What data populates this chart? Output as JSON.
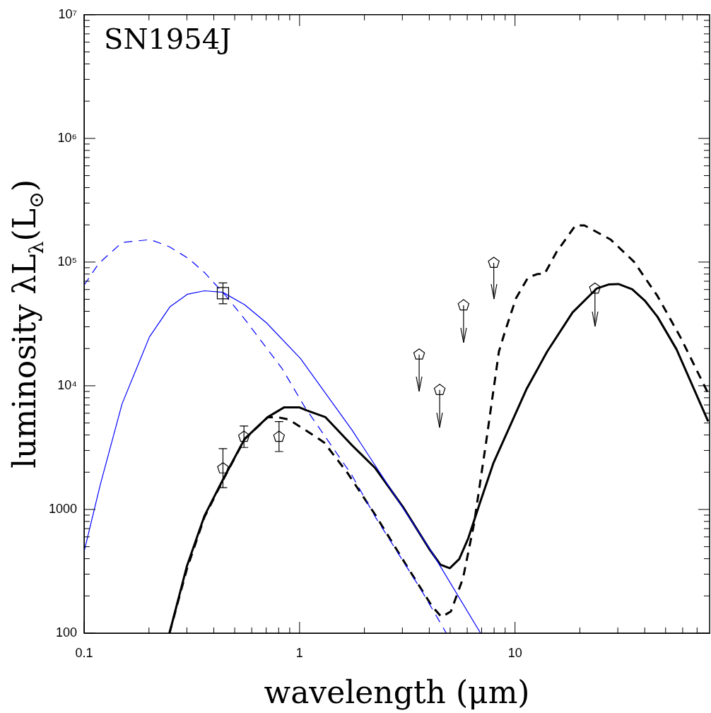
{
  "chart_data": {
    "type": "line",
    "xlabel": "wavelength (μm)",
    "ylabel": "luminosity λL$_{λ}$(L$_{⊙}$)",
    "log": "xy",
    "xlim": [
      0.1,
      80
    ],
    "ylim": [
      100,
      10000000
    ],
    "xticks": [
      0.1,
      {
        "value": 0.2,
        "label": null
      },
      {
        "value": 0.3,
        "label": null
      },
      {
        "value": 0.4,
        "label": null
      },
      {
        "value": 0.5,
        "label": null
      },
      {
        "value": 0.6,
        "label": null
      },
      {
        "value": 0.7,
        "label": null
      },
      {
        "value": 0.8,
        "label": null
      },
      {
        "value": 0.9,
        "label": null
      },
      1,
      {
        "value": 2,
        "label": null
      },
      {
        "value": 3,
        "label": null
      },
      {
        "value": 4,
        "label": null
      },
      {
        "value": 5,
        "label": null
      },
      {
        "value": 6,
        "label": null
      },
      {
        "value": 7,
        "label": null
      },
      {
        "value": 8,
        "label": null
      },
      {
        "value": 9,
        "label": null
      },
      10,
      {
        "value": 20,
        "label": null
      },
      {
        "value": 30,
        "label": null
      },
      {
        "value": 40,
        "label": null
      },
      {
        "value": 50,
        "label": null
      },
      {
        "value": 60,
        "label": null
      },
      {
        "value": 70,
        "label": null
      }
    ],
    "yticks": [
      100,
      {
        "value": 200,
        "label": null
      },
      {
        "value": 300,
        "label": null
      },
      {
        "value": 400,
        "label": null
      },
      {
        "value": 500,
        "label": null
      },
      {
        "value": 600,
        "label": null
      },
      {
        "value": 700,
        "label": null
      },
      {
        "value": 800,
        "label": null
      },
      {
        "value": 900,
        "label": null
      },
      1000,
      {
        "value": 2000,
        "label": null
      },
      {
        "value": 3000,
        "label": null
      },
      {
        "value": 4000,
        "label": null
      },
      {
        "value": 5000,
        "label": null
      },
      {
        "value": 6000,
        "label": null
      },
      {
        "value": 7000,
        "label": null
      },
      {
        "value": 8000,
        "label": null
      },
      {
        "value": 9000,
        "label": null
      },
      {
        "value": 10000,
        "label": "10⁴"
      },
      {
        "value": 20000,
        "label": null
      },
      {
        "value": 30000,
        "label": null
      },
      {
        "value": 40000,
        "label": null
      },
      {
        "value": 50000,
        "label": null
      },
      {
        "value": 60000,
        "label": null
      },
      {
        "value": 70000,
        "label": null
      },
      {
        "value": 80000,
        "label": null
      },
      {
        "value": 90000,
        "label": null
      },
      {
        "value": 100000,
        "label": "10⁵"
      },
      {
        "value": 200000,
        "label": null
      },
      {
        "value": 300000,
        "label": null
      },
      {
        "value": 400000,
        "label": null
      },
      {
        "value": 500000,
        "label": null
      },
      {
        "value": 600000,
        "label": null
      },
      {
        "value": 700000,
        "label": null
      },
      {
        "value": 800000,
        "label": null
      },
      {
        "value": 900000,
        "label": null
      },
      {
        "value": 1000000,
        "label": "10⁶"
      },
      {
        "value": 2000000,
        "label": null
      },
      {
        "value": 3000000,
        "label": null
      },
      {
        "value": 4000000,
        "label": null
      },
      {
        "value": 5000000,
        "label": null
      },
      {
        "value": 6000000,
        "label": null
      },
      {
        "value": 7000000,
        "label": null
      },
      {
        "value": 8000000,
        "label": null
      },
      {
        "value": 9000000,
        "label": null
      },
      {
        "value": 10000000,
        "label": "10⁷"
      }
    ],
    "grid": false,
    "legend": false,
    "annotations": [
      "SN1954J"
    ],
    "series": [
      {
        "color": "#0000ff",
        "line_style": "solid",
        "marker": "none",
        "x": [
          0.1,
          0.119,
          0.15,
          0.201,
          0.25,
          0.302,
          0.362,
          0.44,
          0.556,
          0.703,
          1.01,
          1.75,
          4.11,
          6.92
        ],
        "values": [
          457,
          1597,
          7130,
          24800,
          43400,
          55000,
          58600,
          57000,
          45200,
          32200,
          16600,
          4400,
          452,
          100
        ]
      },
      {
        "color": "#0000ff",
        "line_style": "dashed",
        "marker": "none",
        "x": [
          0.1,
          0.117,
          0.15,
          0.203,
          0.249,
          0.305,
          0.362,
          0.454,
          0.567,
          0.829,
          1.06,
          1.75,
          2.25,
          3.65,
          4.8
        ],
        "values": [
          65100,
          97500,
          144000,
          152000,
          133000,
          107000,
          82300,
          53600,
          33100,
          13800,
          6680,
          1890,
          867,
          227,
          100
        ]
      },
      {
        "color": "#000000",
        "line_style": "solid",
        "marker": "none",
        "x": [
          0.249,
          0.3,
          0.362,
          0.443,
          0.556,
          0.711,
          0.846,
          1.0,
          1.076,
          1.32,
          1.75,
          2.25,
          3.04,
          4.03,
          4.51,
          4.98,
          5.51,
          6.07,
          6.92,
          7.93,
          11.3,
          14.1,
          18.5,
          23.9,
          27.2,
          30.2,
          35.0,
          40.0,
          45.8,
          56.2,
          78.8
        ],
        "values": [
          100,
          348,
          889,
          1770,
          3720,
          5570,
          6680,
          6680,
          6330,
          5570,
          3310,
          2150,
          1030,
          470,
          358,
          335,
          397,
          586,
          1170,
          2360,
          9380,
          18900,
          39200,
          61000,
          65900,
          66500,
          60300,
          48900,
          36200,
          19700,
          5150
        ]
      },
      {
        "color": "#000000",
        "line_style": "dashed",
        "marker": "none",
        "x": [
          0.249,
          0.3,
          0.362,
          0.443,
          0.556,
          0.711,
          0.79,
          0.89,
          1.15,
          1.3,
          1.67,
          2.25,
          3.15,
          4.11,
          4.56,
          5.04,
          5.74,
          6.45,
          7.34,
          8.42,
          9.0,
          10.1,
          11.5,
          12.7,
          13.7,
          15.6,
          19.1,
          21.0,
          27.8,
          35.6,
          45.8,
          58.8,
          78.8
        ],
        "values": [
          100,
          330,
          870,
          1750,
          3700,
          5560,
          5570,
          5340,
          4020,
          3480,
          1970,
          900,
          348,
          166,
          135,
          150,
          279,
          760,
          3480,
          18900,
          27700,
          50800,
          75300,
          80000,
          80000,
          121000,
          198000,
          198000,
          152000,
          101000,
          53300,
          24400,
          8680
        ]
      },
      {
        "type": "scatter",
        "color": "#000000",
        "marker": "square",
        "x": [
          0.441
        ],
        "values": [
          56000
        ],
        "errors": [
          [
            46000,
            67800
          ]
        ]
      },
      {
        "type": "scatter",
        "color": "#000000",
        "x": [
          0.441,
          0.552,
          0.803
        ],
        "values": [
          2150,
          3870,
          3870
        ],
        "errors": [
          [
            1500,
            3100
          ],
          [
            3170,
            4730
          ],
          [
            2940,
            5130
          ]
        ]
      },
      {
        "type": "scatter",
        "color": "#000000",
        "x": [
          3.59,
          4.47,
          5.77,
          7.97,
          23.5
        ],
        "values": [
          17900,
          9250,
          44700,
          98600,
          61000
        ],
        "errors": [
          [
            9000,
            17900
          ],
          [
            4580,
            9250
          ],
          [
            22400,
            44700
          ],
          [
            50200,
            98600
          ],
          [
            30200,
            61000
          ]
        ]
      }
    ]
  }
}
